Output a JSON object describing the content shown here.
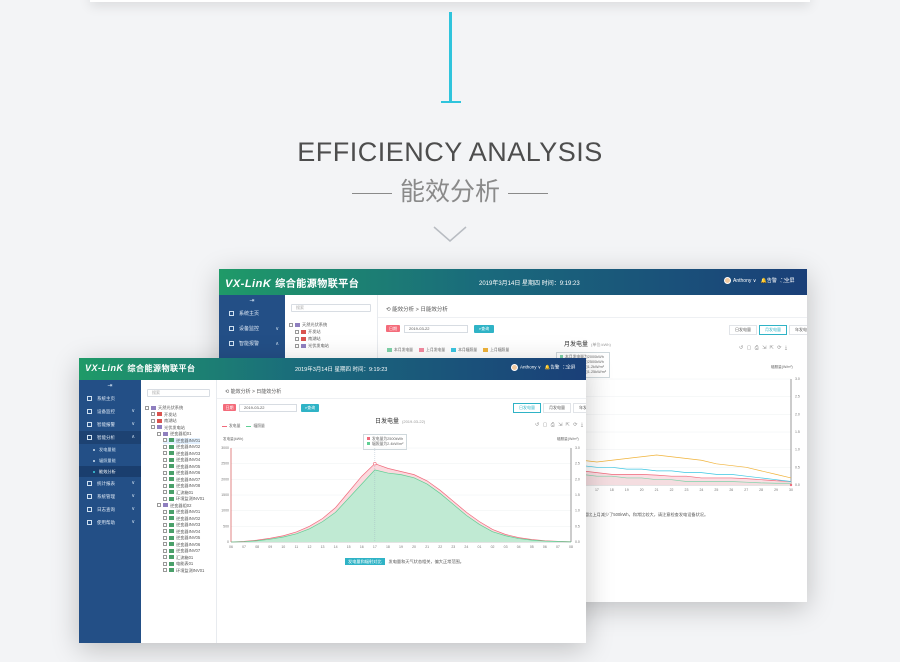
{
  "heading": {
    "en": "EFFICIENCY ANALYSIS",
    "cn": "能效分析"
  },
  "app": {
    "logo_text": "VX-LinK",
    "title": "综合能源物联平台",
    "datetime": "2019年3月14日 星期四   时间：9:19:23",
    "user": "Anthony",
    "alarm_label": "告警",
    "fullscreen_label": "全屏"
  },
  "sidebar": {
    "items": [
      {
        "label": "系统主页"
      },
      {
        "label": "设备监控"
      },
      {
        "label": "智能报警"
      },
      {
        "label": "智能分析"
      },
      {
        "label": "统计报表"
      },
      {
        "label": "系统管理"
      },
      {
        "label": "日志查询"
      },
      {
        "label": "使用帮助"
      }
    ],
    "subitems": [
      {
        "label": "发电量能"
      },
      {
        "label": "辐照量能"
      },
      {
        "label": "能效分析"
      }
    ]
  },
  "tree": {
    "search_placeholder": "搜索",
    "root": "天然光伏系统",
    "nodes": [
      "开发站",
      "南湖站",
      "光伏发电站",
      "逆变器组01",
      "逆变器INV01",
      "逆变器INV02",
      "逆变器INV03",
      "逆变器INV04",
      "逆变器INV05",
      "逆变器INV06",
      "逆变器INV07",
      "逆变器INV08",
      "汇流箱01",
      "环境监测INV01",
      "逆变器组02",
      "逆变器INV01",
      "逆变器INV02",
      "逆变器INV03",
      "逆变器INV04",
      "逆变器INV05",
      "逆变器INV06",
      "逆变器INV07",
      "汇流箱01",
      "电能表01",
      "环境监测INV01"
    ]
  },
  "back_window": {
    "breadcrumb": "能效分析 > 日能效分析",
    "filter_label": "日期",
    "date": "2019-03-22",
    "query_label": "查询",
    "tabs": [
      "日发电量",
      "月发电量",
      "年发电量"
    ],
    "active_tab": 1,
    "chart_title": "月发电量",
    "chart_title_unit": "(单位:kWh)",
    "legend": [
      {
        "name": "本月发电量",
        "color": "#7fd3a9"
      },
      {
        "name": "上月发电量",
        "color": "#f48aa0"
      },
      {
        "name": "本月辐照量",
        "color": "#3bc6e2"
      },
      {
        "name": "上月辐照量",
        "color": "#f0b33a"
      }
    ],
    "tooltip": [
      "本月发电量为2000kWh",
      "上月发电量为2500kWh",
      "本月辐照量为1.2kW/m²",
      "上月辐照量为1.25kW/m²"
    ],
    "y2_label": "辐照量(W/m²)",
    "note": "本月发电量相比上月减少了500kWh，和常比较大，请注意检查发电设备状况。",
    "chart_data": {
      "type": "area",
      "x": [
        1,
        2,
        3,
        4,
        5,
        6,
        7,
        8,
        9,
        10,
        11,
        12,
        13,
        14,
        15,
        16,
        17,
        18,
        19,
        20,
        21,
        22,
        23,
        24,
        25,
        26,
        27,
        28,
        29,
        30
      ],
      "y2lim": [
        0,
        3.0
      ],
      "y2ticks": [
        0,
        0.5,
        1.0,
        1.5,
        2.0,
        2.5,
        3.0
      ],
      "series": [
        {
          "name": "本月发电量",
          "values": [
            2.5,
            2.5,
            2.4,
            2.4,
            2.3,
            2.2,
            2.0,
            1.7,
            1.3,
            1.0,
            0.7,
            0.5,
            0.4,
            0.35,
            0.3,
            0.3,
            0.25,
            0.25,
            0.2,
            0.2,
            0.15,
            0.15,
            0.1,
            0.1,
            0.1,
            0.1,
            0.08,
            0.06,
            0.05,
            0.05
          ]
        },
        {
          "name": "上月发电量",
          "values": [
            2.6,
            2.6,
            2.6,
            2.5,
            2.5,
            2.4,
            2.3,
            2.1,
            1.8,
            1.4,
            1.0,
            0.8,
            0.6,
            0.5,
            0.45,
            0.4,
            0.35,
            0.3,
            0.3,
            0.3,
            0.28,
            0.25,
            0.25,
            0.2,
            0.2,
            0.2,
            0.18,
            0.15,
            0.12,
            0.1
          ]
        },
        {
          "name": "本月辐照量",
          "values": [
            2.5,
            2.45,
            2.4,
            2.3,
            2.0,
            1.6,
            1.1,
            0.9,
            0.8,
            0.75,
            0.7,
            0.7,
            0.65,
            0.6,
            0.6,
            0.55,
            0.5,
            0.5,
            0.45,
            0.45,
            0.4,
            0.4,
            0.35,
            0.35,
            0.3,
            0.3,
            0.25,
            0.2,
            0.15,
            0.1
          ]
        },
        {
          "name": "上月辐照量",
          "values": [
            2.4,
            2.35,
            2.3,
            2.2,
            2.1,
            1.9,
            1.5,
            1.2,
            1.0,
            0.9,
            0.85,
            0.8,
            0.8,
            0.75,
            0.7,
            0.7,
            0.65,
            0.7,
            0.75,
            0.8,
            0.85,
            0.8,
            0.75,
            0.7,
            0.6,
            0.55,
            0.5,
            0.4,
            0.3,
            0.2
          ]
        }
      ]
    }
  },
  "front_window": {
    "breadcrumb": "能效分析 > 日能效分析",
    "filter_label": "日期",
    "date": "2019-03-22",
    "query_label": "查询",
    "tabs": [
      "日发电量",
      "月发电量",
      "年发电量"
    ],
    "active_tab": 0,
    "chart_title": "日发电量",
    "chart_title_unit": "(2019-03-22)",
    "legend": [
      {
        "name": "发电量",
        "color": "#f06a7b"
      },
      {
        "name": "辐照量",
        "color": "#5fcf94"
      }
    ],
    "y_label": "发电量(kWh)",
    "y2_label": "辐照量(W/m²)",
    "tooltip": [
      "发电量为2500kWh",
      "辐照量为2.4kW/m²"
    ],
    "note_tag": "发电量和辐射对比",
    "note": "发电量和天气状态相关，偏大正常范围。",
    "chart_data": {
      "type": "area",
      "x": [
        "06",
        "07",
        "08",
        "09",
        "10",
        "11",
        "12",
        "13",
        "14",
        "15",
        "16",
        "17",
        "18",
        "19",
        "20",
        "21",
        "22",
        "23",
        "24",
        "01",
        "02",
        "03",
        "04",
        "05",
        "06",
        "07",
        "08"
      ],
      "ylim": [
        0,
        3000
      ],
      "yticks": [
        0,
        500,
        1000,
        1500,
        2000,
        2500,
        3000
      ],
      "y2lim": [
        0,
        3.0
      ],
      "series": [
        {
          "name": "发电量",
          "values": [
            0,
            20,
            60,
            120,
            200,
            320,
            500,
            750,
            1100,
            1600,
            2100,
            2500,
            2350,
            2250,
            2150,
            1950,
            1650,
            1300,
            950,
            650,
            400,
            240,
            140,
            80,
            40,
            20,
            10
          ]
        },
        {
          "name": "辐照量",
          "values": [
            0,
            10,
            40,
            90,
            160,
            260,
            420,
            650,
            950,
            1400,
            1850,
            2300,
            2200,
            2150,
            2050,
            1850,
            1550,
            1200,
            850,
            560,
            330,
            200,
            110,
            60,
            30,
            15,
            5
          ]
        }
      ]
    }
  }
}
